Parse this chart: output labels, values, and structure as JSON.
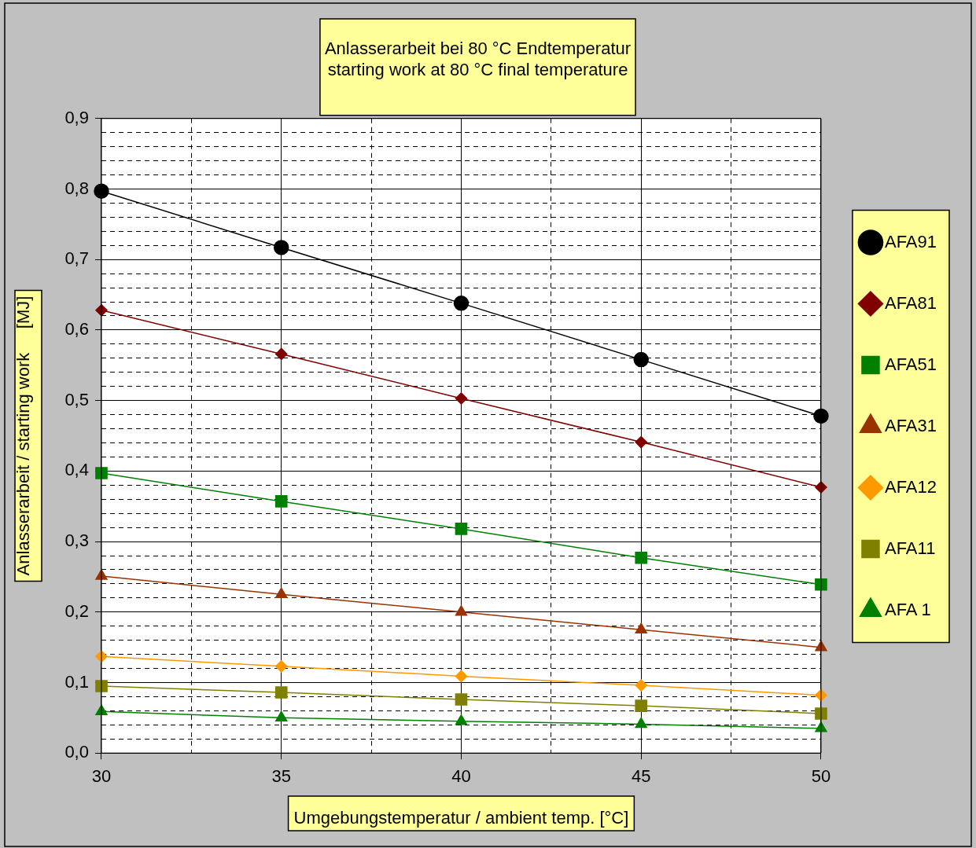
{
  "chart_data": {
    "type": "line",
    "title": "Anlasserarbeit bei 80 °C Endtemperatur\nstarting work at 80 °C final temperature",
    "xlabel": "Umgebungstemperatur / ambient temp. [°C]",
    "ylabel": "Anlasserarbeit / starting work     [MJ]",
    "x": [
      30,
      35,
      40,
      45,
      50
    ],
    "xlim": [
      30,
      50
    ],
    "xticks": [
      30,
      {
        "value": 32.5,
        "label": null
      },
      35,
      {
        "value": 37.5,
        "label": null
      },
      40,
      {
        "value": 42.5,
        "label": null
      },
      45,
      {
        "value": 47.5,
        "label": null
      },
      50
    ],
    "ylim": [
      0,
      0.9
    ],
    "yticks": [
      {
        "value": 0,
        "label": "0,0"
      },
      {
        "value": 0.02,
        "label": null
      },
      {
        "value": 0.04,
        "label": null
      },
      {
        "value": 0.06,
        "label": null
      },
      {
        "value": 0.08,
        "label": null
      },
      {
        "value": 0.1,
        "label": "0,1"
      },
      {
        "value": 0.12,
        "label": null
      },
      {
        "value": 0.14,
        "label": null
      },
      {
        "value": 0.16,
        "label": null
      },
      {
        "value": 0.18,
        "label": null
      },
      {
        "value": 0.2,
        "label": "0,2"
      },
      {
        "value": 0.22,
        "label": null
      },
      {
        "value": 0.24,
        "label": null
      },
      {
        "value": 0.26,
        "label": null
      },
      {
        "value": 0.28,
        "label": null
      },
      {
        "value": 0.3,
        "label": "0,3"
      },
      {
        "value": 0.32,
        "label": null
      },
      {
        "value": 0.34,
        "label": null
      },
      {
        "value": 0.36,
        "label": null
      },
      {
        "value": 0.38,
        "label": null
      },
      {
        "value": 0.4,
        "label": "0,4"
      },
      {
        "value": 0.42,
        "label": null
      },
      {
        "value": 0.44,
        "label": null
      },
      {
        "value": 0.46,
        "label": null
      },
      {
        "value": 0.48,
        "label": null
      },
      {
        "value": 0.5,
        "label": "0,5"
      },
      {
        "value": 0.52,
        "label": null
      },
      {
        "value": 0.54,
        "label": null
      },
      {
        "value": 0.56,
        "label": null
      },
      {
        "value": 0.58,
        "label": null
      },
      {
        "value": 0.6,
        "label": "0,6"
      },
      {
        "value": 0.62,
        "label": null
      },
      {
        "value": 0.64,
        "label": null
      },
      {
        "value": 0.66,
        "label": null
      },
      {
        "value": 0.68,
        "label": null
      },
      {
        "value": 0.7,
        "label": "0,7"
      },
      {
        "value": 0.72,
        "label": null
      },
      {
        "value": 0.74,
        "label": null
      },
      {
        "value": 0.76,
        "label": null
      },
      {
        "value": 0.78,
        "label": null
      },
      {
        "value": 0.8,
        "label": "0,8"
      },
      {
        "value": 0.82,
        "label": null
      },
      {
        "value": 0.84,
        "label": null
      },
      {
        "value": 0.86,
        "label": null
      },
      {
        "value": 0.88,
        "label": null
      },
      {
        "value": 0.9,
        "label": "0,9"
      }
    ],
    "grid": true,
    "legend": "right",
    "line_style": "solid",
    "series": [
      {
        "name": "AFA91",
        "color": "#000000",
        "marker": "circle",
        "values": [
          0.797,
          0.717,
          0.638,
          0.558,
          0.478
        ]
      },
      {
        "name": "AFA81",
        "color": "#800000",
        "marker": "diamond",
        "values": [
          0.628,
          0.566,
          0.503,
          0.441,
          0.377
        ]
      },
      {
        "name": "AFA51",
        "color": "#008000",
        "marker": "square",
        "values": [
          0.397,
          0.357,
          0.318,
          0.277,
          0.239
        ]
      },
      {
        "name": "AFA31",
        "color": "#993300",
        "marker": "triangle",
        "values": [
          0.251,
          0.225,
          0.2,
          0.175,
          0.15
        ]
      },
      {
        "name": "AFA12",
        "color": "#ff9900",
        "marker": "diamond",
        "values": [
          0.137,
          0.123,
          0.109,
          0.096,
          0.082
        ]
      },
      {
        "name": "AFA11",
        "color": "#808000",
        "marker": "square",
        "values": [
          0.095,
          0.086,
          0.076,
          0.067,
          0.056
        ]
      },
      {
        "name": "AFA 1",
        "color": "#008000",
        "marker": "triangle",
        "values": [
          0.059,
          0.05,
          0.045,
          0.041,
          0.035
        ]
      }
    ]
  }
}
